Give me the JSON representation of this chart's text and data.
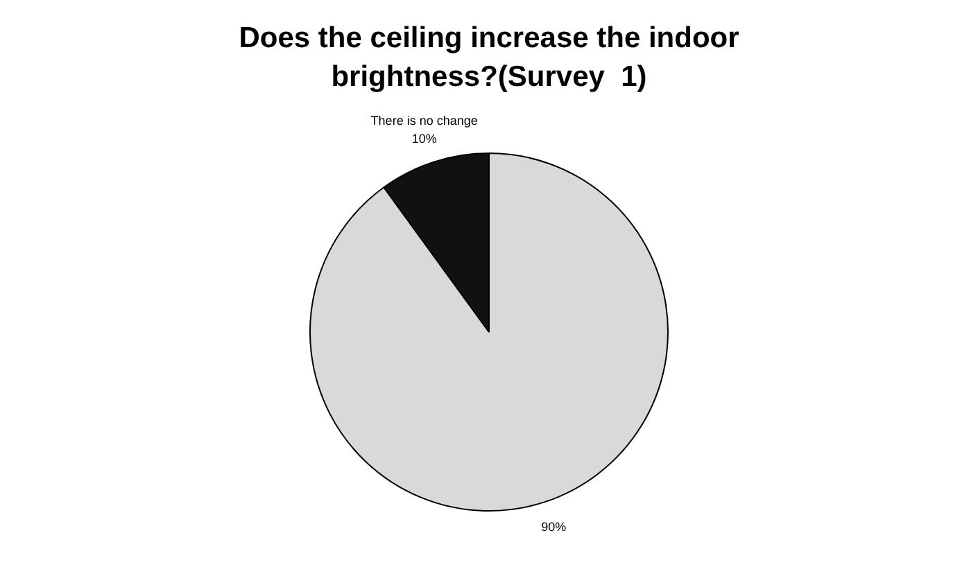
{
  "chart_data": {
    "type": "pie",
    "title": "Does the ceiling increase the indoor brightness?(Survey  1)",
    "categories": [
      null,
      "There is no change"
    ],
    "values": [
      90,
      10
    ],
    "colors": [
      "#d9d9d9",
      "#111111"
    ],
    "value_labels": [
      "90%",
      "10%"
    ],
    "legend": false
  }
}
